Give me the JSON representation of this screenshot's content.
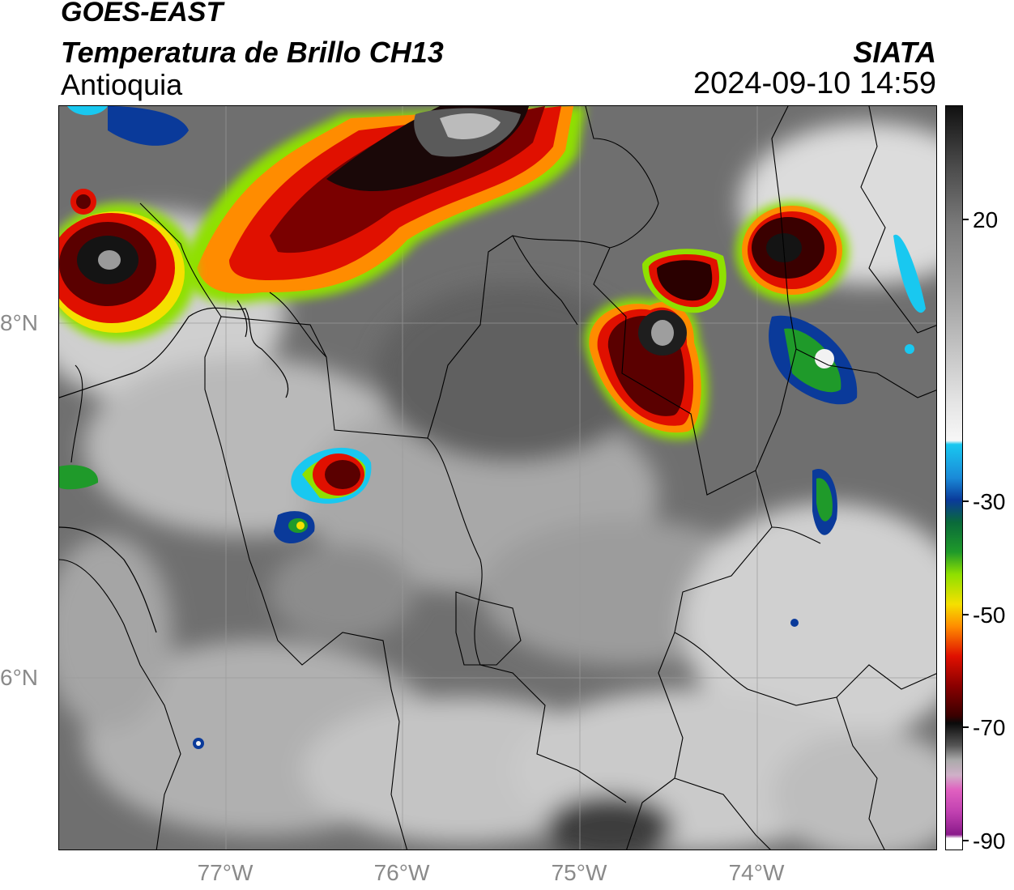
{
  "header": {
    "satellite": "GOES-EAST",
    "product": "Temperatura de Brillo CH13",
    "region": "Antioquia",
    "organization": "SIATA",
    "timestamp": "2024-09-10 14:59"
  },
  "axes": {
    "latitude_labels": [
      "8°N",
      "6°N"
    ],
    "longitude_labels": [
      "77°W",
      "76°W",
      "75°W",
      "74°W"
    ]
  },
  "colorbar": {
    "ticks": [
      "20",
      "-30",
      "-50",
      "-70",
      "-90"
    ],
    "colors": {
      "top_black": "#111111",
      "gray_high": "#8a8a8a",
      "white": "#f2f2f2",
      "cyan": "#19c8f0",
      "blue": "#0a3a9a",
      "green": "#1f9a2a",
      "lime": "#8fe000",
      "yellow": "#f5e000",
      "orange": "#ff8c00",
      "red": "#e01000",
      "dark_red": "#5a0000",
      "black": "#0a0a0a",
      "light_gray": "#bbbbbb",
      "pink": "#e060c0",
      "purple": "#8a1a8a"
    }
  }
}
